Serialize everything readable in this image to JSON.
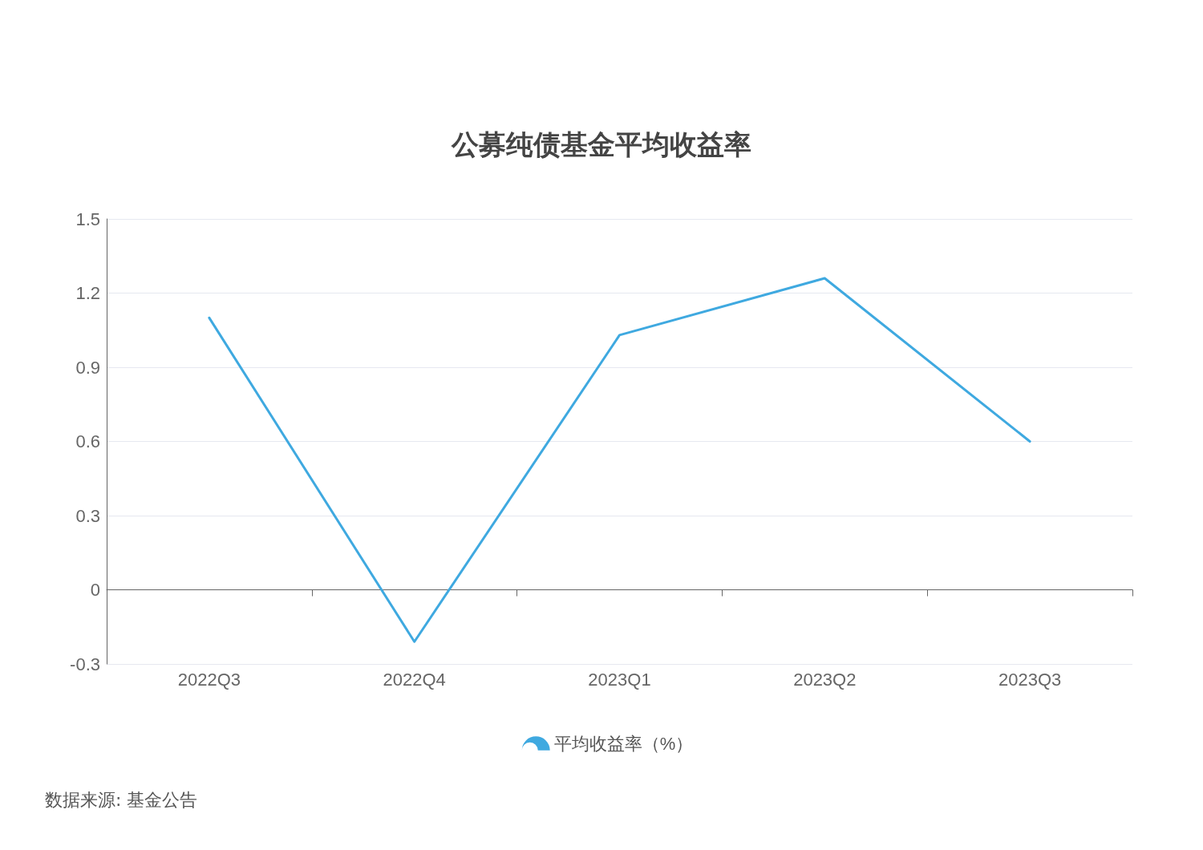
{
  "chart_data": {
    "type": "line",
    "title": "公募纯债基金平均收益率",
    "categories": [
      "2022Q3",
      "2022Q4",
      "2023Q1",
      "2023Q2",
      "2023Q3"
    ],
    "series": [
      {
        "name": "平均收益率（%）",
        "color": "#3fa9e0",
        "values": [
          1.1,
          -0.21,
          1.03,
          1.26,
          0.6
        ]
      }
    ],
    "ylim": [
      -0.3,
      1.5
    ],
    "yticks": [
      -0.3,
      0,
      0.3,
      0.6,
      0.9,
      1.2,
      1.5
    ],
    "grid": "y",
    "legend": "bottom",
    "marker": "none",
    "line_style": "solid",
    "annotations": [
      "数据来源: 基金公告"
    ]
  }
}
